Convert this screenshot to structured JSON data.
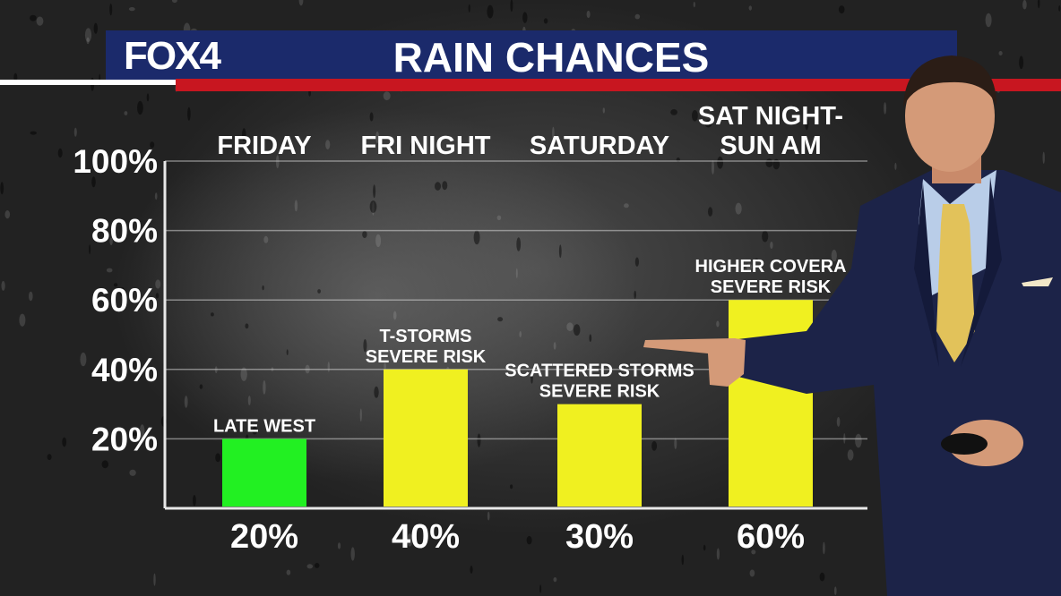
{
  "header": {
    "logo": "FOX4",
    "title": "RAIN CHANCES"
  },
  "colors": {
    "header_blue": "#1b2a6b",
    "accent_red": "#c81620",
    "bar_green": "#22f022",
    "bar_yellow": "#f0f020"
  },
  "chart_data": {
    "type": "bar",
    "title": "RAIN CHANCES",
    "ylim": [
      0,
      100
    ],
    "y_ticks": [
      "20%",
      "40%",
      "60%",
      "80%",
      "100%"
    ],
    "y_tick_values": [
      20,
      40,
      60,
      80,
      100
    ],
    "grid": true,
    "categories": [
      [
        "FRIDAY"
      ],
      [
        "FRI NIGHT"
      ],
      [
        "SATURDAY"
      ],
      [
        "SAT NIGHT-",
        "SUN AM"
      ]
    ],
    "values": [
      20,
      40,
      30,
      60
    ],
    "value_labels": [
      "20%",
      "40%",
      "30%",
      "60%"
    ],
    "bar_colors": [
      "#22f022",
      "#f0f020",
      "#f0f020",
      "#f0f020"
    ],
    "annotations": [
      [
        "LATE WEST"
      ],
      [
        "T-STORMS",
        "SEVERE RISK"
      ],
      [
        "SCATTERED STORMS",
        "SEVERE RISK"
      ],
      [
        "HIGHER COVERA",
        "SEVERE RISK"
      ]
    ]
  }
}
